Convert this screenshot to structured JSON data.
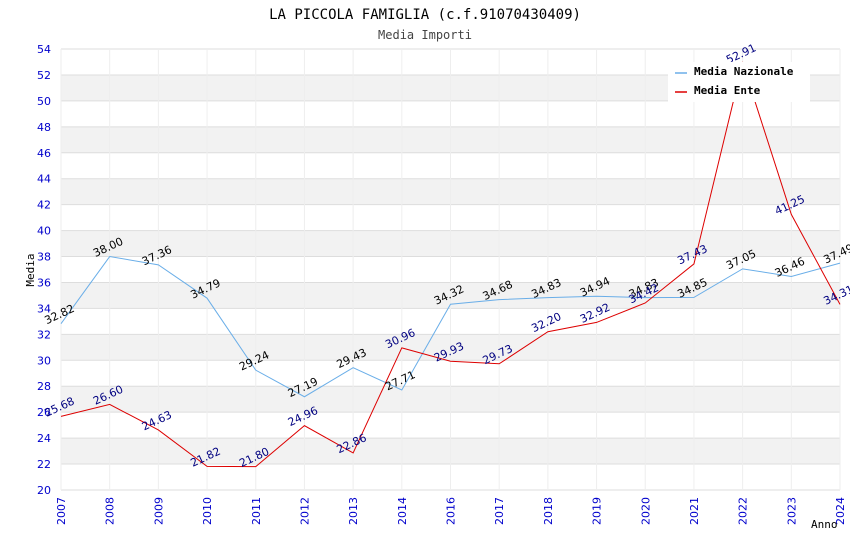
{
  "chart_data": {
    "type": "line",
    "title": "LA PICCOLA FAMIGLIA (c.f.91070430409)",
    "subtitle": "Media Importi",
    "xlabel": "Anno",
    "ylabel": "Media",
    "ylim": [
      20,
      54
    ],
    "y_ticks": [
      "20",
      "22",
      "24",
      "26",
      "28",
      "30",
      "32",
      "34",
      "36",
      "38",
      "40",
      "42",
      "44",
      "46",
      "48",
      "50",
      "52",
      "54"
    ],
    "categories": [
      "2007",
      "2008",
      "2009",
      "2010",
      "2011",
      "2012",
      "2013",
      "2014",
      "2016",
      "2017",
      "2018",
      "2019",
      "2020",
      "2021",
      "2022",
      "2023",
      "2024"
    ],
    "grid": "horizontal bands",
    "legend_position": "top-right",
    "series": [
      {
        "name": "Media Nazionale",
        "color": "#6aaee8",
        "label_color": "#000000",
        "values": [
          32.82,
          38.0,
          37.36,
          34.79,
          29.24,
          27.19,
          29.43,
          27.71,
          34.32,
          34.68,
          34.83,
          34.94,
          34.83,
          34.85,
          37.05,
          36.46,
          37.49
        ],
        "labels": [
          "32.82",
          "38.00",
          "37.36",
          "34.79",
          "29.24",
          "27.19",
          "29.43",
          "27.71",
          "34.32",
          "34.68",
          "34.83",
          "34.94",
          "34.83",
          "34.85",
          "37.05",
          "36.46",
          "37.49"
        ]
      },
      {
        "name": "Media Ente",
        "color": "#dd0000",
        "label_color": "#000080",
        "values": [
          25.68,
          26.6,
          24.63,
          21.82,
          21.8,
          24.96,
          22.86,
          30.96,
          29.93,
          29.73,
          32.2,
          32.92,
          34.42,
          37.43,
          52.91,
          41.25,
          34.31
        ],
        "labels": [
          "25.68",
          "26.60",
          "24.63",
          "21.82",
          "21.80",
          "24.96",
          "22.86",
          "30.96",
          "29.93",
          "29.73",
          "32.20",
          "32.92",
          "34.42",
          "37.43",
          "52.91",
          "41.25",
          "34.31"
        ]
      }
    ]
  }
}
